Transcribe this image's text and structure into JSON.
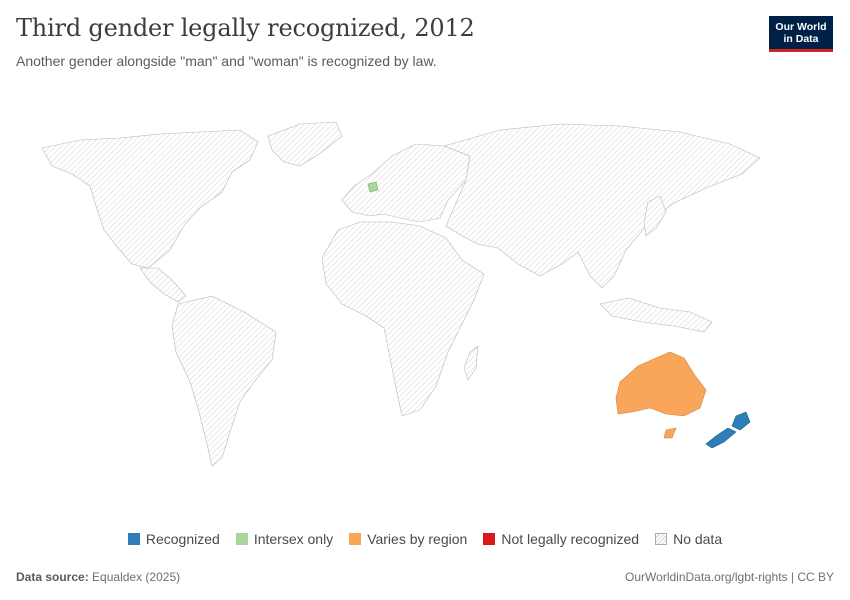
{
  "header": {
    "title": "Third gender legally recognized, 2012",
    "subtitle": "Another gender alongside \"man\" and \"woman\" is recognized by law."
  },
  "logo": {
    "line1": "Our World",
    "line2": "in Data"
  },
  "legend": {
    "items": [
      {
        "label": "Recognized",
        "color": "#2e7fb8"
      },
      {
        "label": "Intersex only",
        "color": "#a9d69c"
      },
      {
        "label": "Varies by region",
        "color": "#f9a65a"
      },
      {
        "label": "Not legally recognized",
        "color": "#d7191c"
      },
      {
        "label": "No data",
        "color": "hatch"
      }
    ]
  },
  "map": {
    "highlighted": [
      {
        "region": "Australia",
        "category": "Varies by region"
      },
      {
        "region": "New Zealand",
        "category": "Recognized"
      },
      {
        "region": "Germany",
        "category": "Intersex only"
      }
    ],
    "default_category": "No data"
  },
  "footer": {
    "source_label": "Data source:",
    "source_value": "Equaldex (2025)",
    "link": "OurWorldinData.org/lgbt-rights | CC BY"
  }
}
